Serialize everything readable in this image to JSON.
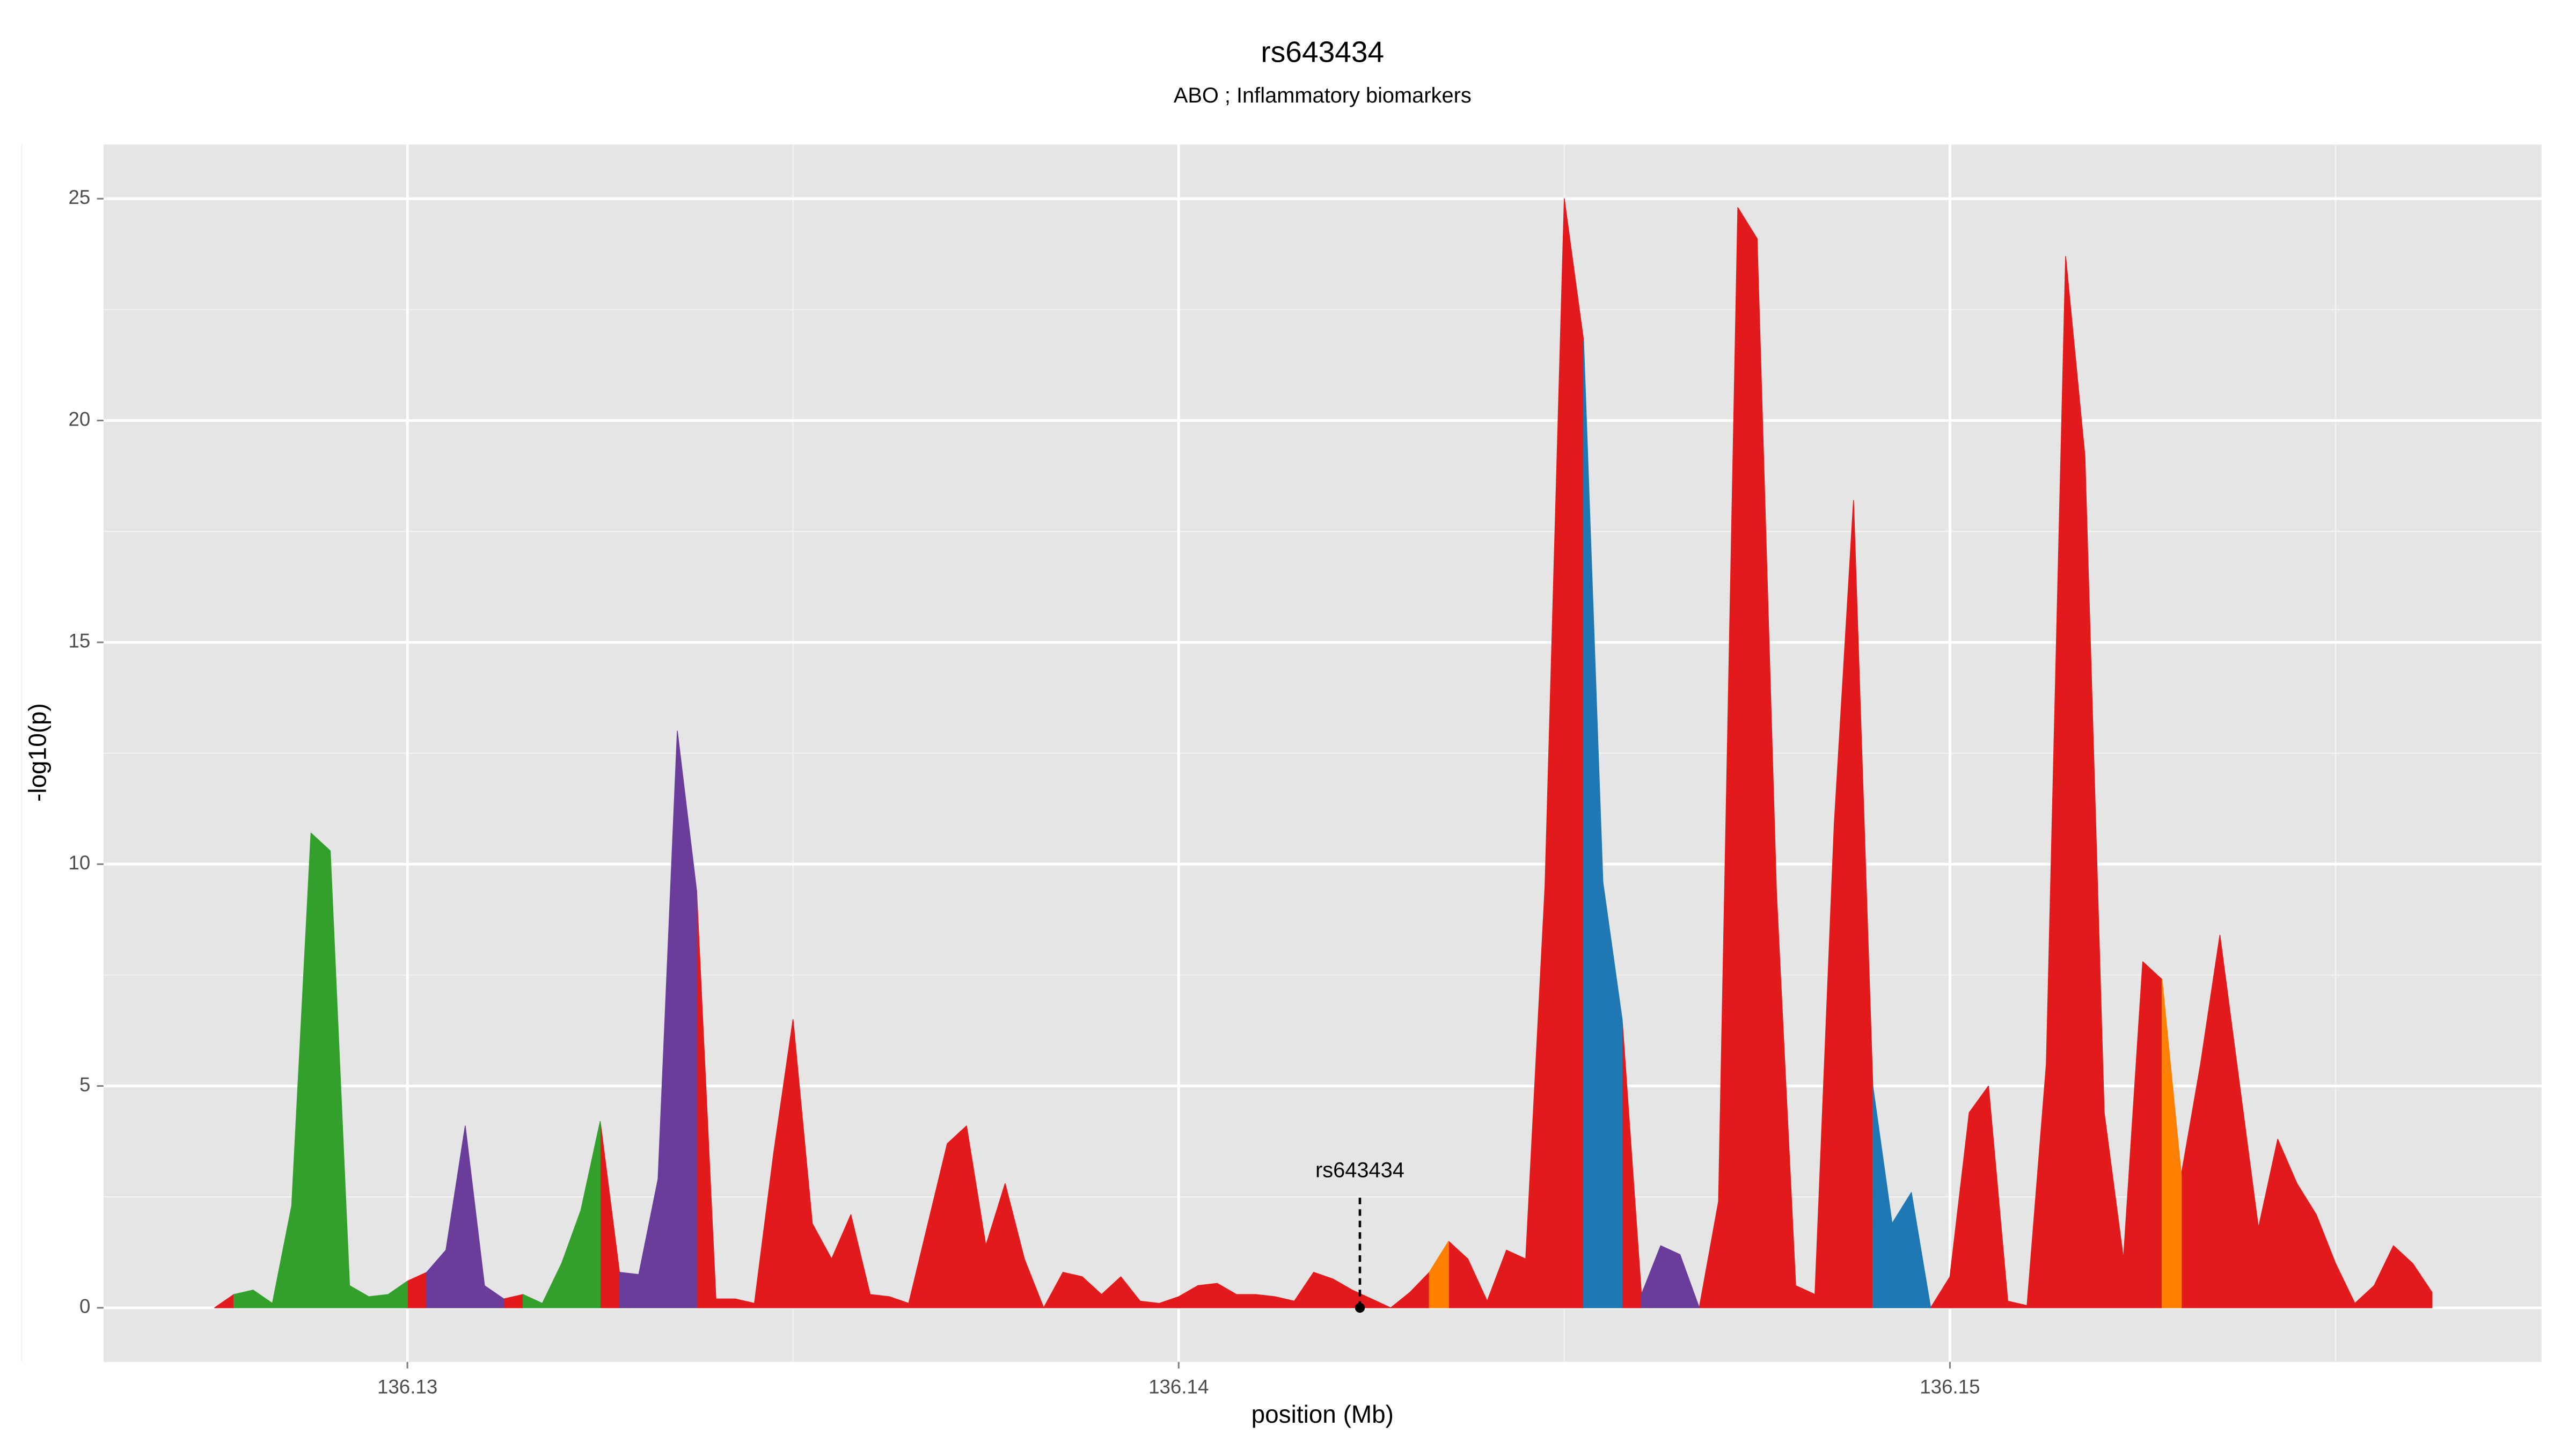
{
  "chart_data": {
    "type": "area",
    "title": "rs643434",
    "subtitle": "ABO ; Inflammatory biomarkers",
    "xlabel": "position (Mb)",
    "ylabel": "-log10(p)",
    "xlim": [
      136.12606,
      136.15767
    ],
    "ylim": [
      -1.22,
      26.22
    ],
    "xticks": [
      136.13,
      136.14,
      136.15
    ],
    "yticks": [
      0,
      5,
      10,
      15,
      20,
      25
    ],
    "x_minor_ticks": [
      136.125,
      136.135,
      136.145,
      136.155
    ],
    "y_minor_ticks": [
      2.5,
      7.5,
      12.5,
      17.5,
      22.5
    ],
    "grid": true,
    "background": "#e5e5e5",
    "series": [
      {
        "color": "#e31a1c",
        "x": [
          136.1275,
          136.12775,
          null,
          136.13,
          136.13025,
          null,
          136.13125,
          136.1315,
          null,
          136.1325,
          136.13275,
          null,
          136.13375,
          136.134,
          136.13425,
          136.1345,
          136.13475,
          136.135,
          136.13525,
          136.1355,
          136.13575,
          136.136,
          136.13625,
          136.1365,
          136.13675,
          136.137,
          136.13725,
          136.1375,
          136.13775,
          136.138,
          136.13825,
          136.1385,
          136.13875,
          136.139,
          136.13925,
          136.1395,
          136.13975,
          136.14,
          136.14025,
          136.1405,
          136.14075,
          136.141,
          136.14125,
          136.1415,
          136.14175,
          136.142,
          136.14225,
          136.1425,
          136.14275,
          136.143,
          136.14325,
          null,
          136.1435,
          136.14375,
          136.144,
          136.14425,
          136.1445,
          136.14475,
          136.145,
          136.14525,
          null,
          136.14575,
          136.146,
          null,
          136.14675,
          136.147,
          136.14725,
          136.1475,
          136.14775,
          136.148,
          136.14825,
          136.1485,
          136.14875,
          136.149,
          null,
          136.14975,
          136.15,
          136.15025,
          136.1505,
          136.15075,
          136.151,
          136.15125,
          136.1515,
          136.15175,
          136.152,
          136.15225,
          136.1525,
          136.15275,
          null,
          136.153,
          136.15325,
          136.1535,
          136.15375,
          136.154,
          136.15425,
          136.1545,
          136.15475,
          136.155,
          136.15525,
          136.1555,
          136.15575,
          136.156,
          136.15625
        ],
        "values": [
          0,
          0.3,
          null,
          0.6,
          0.8,
          null,
          0.2,
          0.3,
          null,
          4.2,
          0.8,
          null,
          9.4,
          0.2,
          0.2,
          0.1,
          3.5,
          6.5,
          1.9,
          1.1,
          2.1,
          0.3,
          0.25,
          0.1,
          1.9,
          3.7,
          4.1,
          1.4,
          2.8,
          1.1,
          0,
          0.8,
          0.7,
          0.3,
          0.7,
          0.15,
          0.1,
          0.25,
          0.5,
          0.55,
          0.3,
          0.3,
          0.25,
          0.15,
          0.8,
          0.65,
          0.4,
          0.2,
          0,
          0.35,
          0.8,
          null,
          1.5,
          1.1,
          0.15,
          1.3,
          1.1,
          9.5,
          25,
          21.8,
          null,
          6.5,
          0.3,
          null,
          0,
          2.4,
          24.8,
          24.1,
          9.4,
          0.5,
          0.3,
          10.9,
          18.2,
          5.0,
          null,
          0,
          0.7,
          4.4,
          5.0,
          0.15,
          0.05,
          5.5,
          23.7,
          19.2,
          4.4,
          1.1,
          7.8,
          7.4,
          null,
          3.0,
          5.5,
          8.4,
          5.1,
          1.8,
          3.8,
          2.8,
          2.1,
          1.0,
          0.1,
          0.5,
          1.4,
          1.0,
          0.35
        ]
      },
      {
        "color": "#33a02c",
        "x": [
          136.12775,
          136.128,
          136.12825,
          136.1285,
          136.12875,
          136.129,
          136.12925,
          136.1295,
          136.12975,
          136.13,
          null,
          136.1315,
          136.13175,
          136.132,
          136.13225,
          136.1325
        ],
        "values": [
          0.3,
          0.4,
          0.1,
          2.3,
          10.7,
          10.3,
          0.5,
          0.25,
          0.3,
          0.6,
          null,
          0.3,
          0.1,
          1.0,
          2.2,
          4.2
        ]
      },
      {
        "color": "#6a3d9a",
        "x": [
          136.13025,
          136.1305,
          136.13075,
          136.131,
          136.13125,
          null,
          136.13275,
          136.133,
          136.13325,
          136.1335,
          136.13375,
          null,
          136.146,
          136.14625,
          136.1465,
          136.14675
        ],
        "values": [
          0.8,
          1.3,
          4.1,
          0.5,
          0.2,
          null,
          0.8,
          0.75,
          2.9,
          13.0,
          9.4,
          null,
          0.3,
          1.4,
          1.2,
          0
        ]
      },
      {
        "color": "#ff7f00",
        "x": [
          136.14325,
          136.1435,
          null,
          136.15275,
          136.153
        ],
        "values": [
          0.8,
          1.5,
          null,
          7.4,
          3.0
        ]
      },
      {
        "color": "#1f78b4",
        "x": [
          136.14525,
          136.1455,
          136.14575,
          null,
          136.149,
          136.14925,
          136.1495,
          136.14975
        ],
        "values": [
          21.8,
          9.6,
          6.5,
          null,
          5.0,
          1.9,
          2.6,
          0
        ]
      }
    ],
    "annotations": [
      {
        "text": "rs643434",
        "x": 136.14235,
        "y": 0
      }
    ]
  }
}
